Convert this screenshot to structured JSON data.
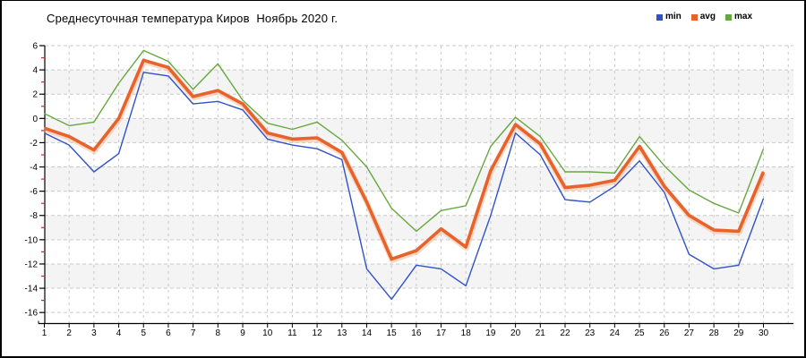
{
  "chart_data": {
    "type": "line",
    "title": "Среднесуточная температура Киров  Ноябрь 2020 г.",
    "xlabel": "",
    "ylabel": "",
    "categories": [
      1,
      2,
      3,
      4,
      5,
      6,
      7,
      8,
      9,
      10,
      11,
      12,
      13,
      14,
      15,
      16,
      17,
      18,
      19,
      20,
      21,
      22,
      23,
      24,
      25,
      26,
      27,
      28,
      29,
      30
    ],
    "series": [
      {
        "name": "min",
        "color": "#3052c8",
        "values": [
          -1.2,
          -2.2,
          -4.4,
          -2.9,
          3.8,
          3.5,
          1.2,
          1.4,
          0.7,
          -1.7,
          -2.2,
          -2.5,
          -3.4,
          -12.4,
          -14.9,
          -12.1,
          -12.4,
          -13.8,
          -8,
          -1.2,
          -3,
          -6.7,
          -6.9,
          -5.6,
          -3.5,
          -6.1,
          -11.2,
          -12.4,
          -12.1,
          -6.6
        ]
      },
      {
        "name": "avg",
        "color": "#e8622b",
        "values": [
          -0.8,
          -1.5,
          -2.6,
          0,
          4.8,
          4.2,
          1.8,
          2.3,
          1.2,
          -1.2,
          -1.7,
          -1.6,
          -2.8,
          -6.9,
          -11.6,
          -10.9,
          -9.1,
          -10.6,
          -4.3,
          -0.5,
          -2.1,
          -5.7,
          -5.5,
          -5.1,
          -2.3,
          -5.6,
          -8,
          -9.2,
          -9.3,
          -4.4
        ]
      },
      {
        "name": "max",
        "color": "#66a83f",
        "values": [
          0.4,
          -0.6,
          -0.3,
          2.9,
          5.6,
          4.7,
          2.4,
          4.5,
          1.5,
          -0.4,
          -0.9,
          -0.3,
          -1.8,
          -4,
          -7.4,
          -9.3,
          -7.6,
          -7.2,
          -2.3,
          0.1,
          -1.5,
          -4.4,
          -4.4,
          -4.5,
          -1.5,
          -3.9,
          -5.9,
          -7,
          -7.8,
          -2.5
        ]
      }
    ],
    "ylim": [
      -16,
      6
    ],
    "y_tick_step": 2,
    "y_minor_tick_step": 1,
    "grid": true,
    "legend_position": "top-right",
    "colors": {
      "axis": "#000000",
      "grid": "#c9c9c9",
      "band_light": "#ffffff",
      "band_shade": "#f4f4f4",
      "minor_tick": "#cc2a2a",
      "tick_label": "#000000",
      "avg_halo": "#f7bd9c"
    }
  }
}
